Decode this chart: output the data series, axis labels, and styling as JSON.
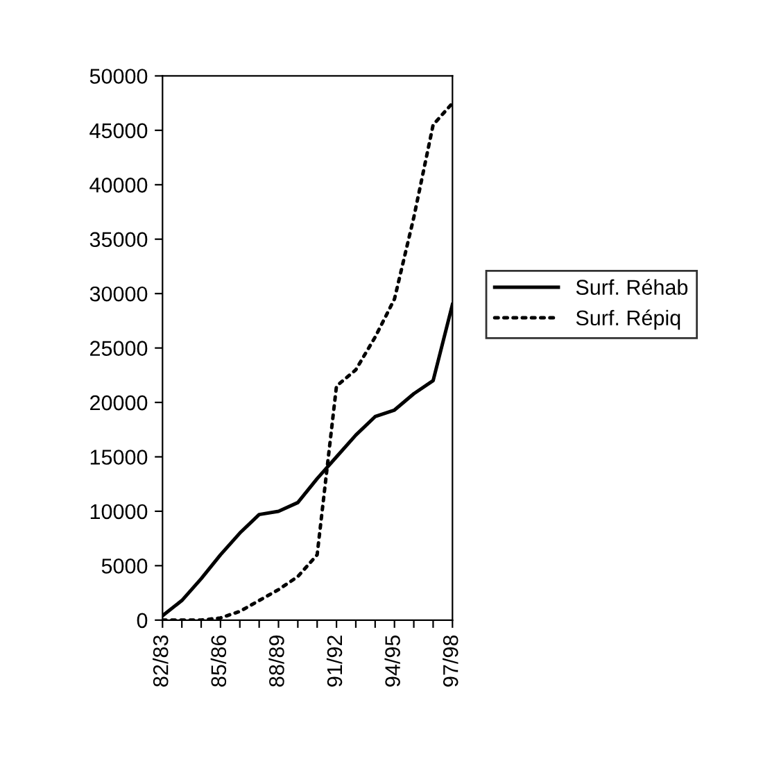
{
  "chart_data": {
    "type": "line",
    "categories": [
      "82/83",
      null,
      null,
      "85/86",
      null,
      null,
      "88/89",
      null,
      null,
      "91/92",
      null,
      null,
      "94/95",
      null,
      null,
      "97/98"
    ],
    "series": [
      {
        "name": "Surf. Réhab",
        "color": "#000000",
        "line_style": "solid",
        "values": [
          400,
          1800,
          3800,
          6000,
          8000,
          9700,
          10000,
          10800,
          13000,
          15000,
          17000,
          18700,
          19300,
          20800,
          22000,
          29000
        ]
      },
      {
        "name": "Surf. Répiq",
        "color": "#000000",
        "line_style": "dotted",
        "values": [
          0,
          0,
          0,
          200,
          800,
          1800,
          2800,
          4000,
          6000,
          21500,
          23000,
          26000,
          29500,
          37000,
          45500,
          47500
        ]
      }
    ],
    "ylim": [
      0,
      50000
    ],
    "yticks": [
      0,
      5000,
      10000,
      15000,
      20000,
      25000,
      30000,
      35000,
      40000,
      45000,
      50000
    ],
    "grid": false,
    "legend": "right",
    "marker": "none"
  }
}
